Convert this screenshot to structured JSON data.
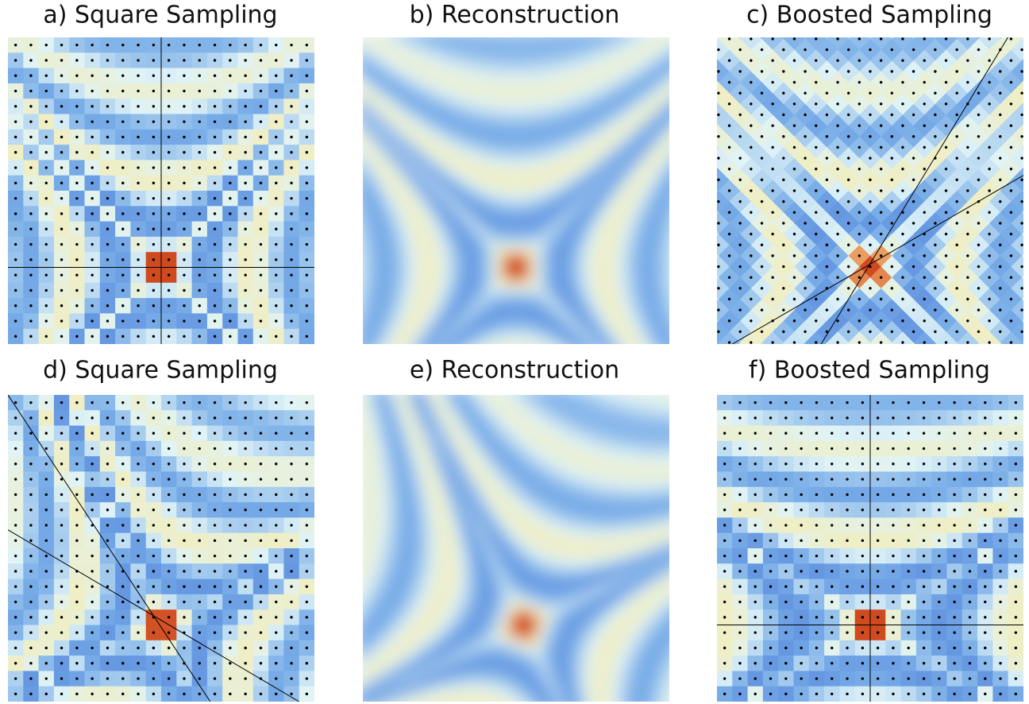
{
  "panels": [
    {
      "title": "a) Square Sampling"
    },
    {
      "title": "b) Reconstruction"
    },
    {
      "title": "c) Boosted Sampling"
    },
    {
      "title": "d) Square Sampling"
    },
    {
      "title": "e) Reconstruction"
    },
    {
      "title": "f) Boosted Sampling"
    }
  ]
}
